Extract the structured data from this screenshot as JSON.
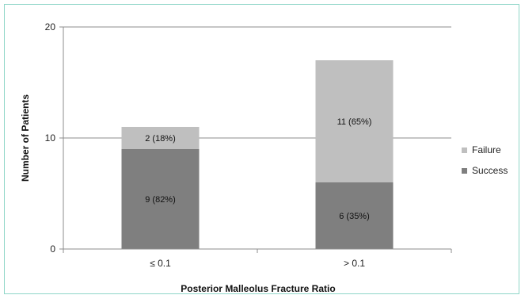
{
  "chart_data": {
    "type": "bar",
    "stacked": true,
    "categories": [
      "≤ 0.1",
      "> 0.1"
    ],
    "series": [
      {
        "name": "Success",
        "values": [
          9,
          6
        ],
        "labels": [
          "9 (82%)",
          "6 (35%)"
        ],
        "color": "#7f7f7f"
      },
      {
        "name": "Failure",
        "values": [
          2,
          11
        ],
        "labels": [
          "2 (18%)",
          "11 (65%)"
        ],
        "color": "#bfbfbf"
      }
    ],
    "title": "",
    "xlabel": "Posterior Malleolus Fracture Ratio",
    "ylabel": "Number of Patients",
    "ylim": [
      0,
      20
    ],
    "yticks": [
      "0",
      "10",
      "20"
    ],
    "grid": true,
    "legend": "right"
  }
}
